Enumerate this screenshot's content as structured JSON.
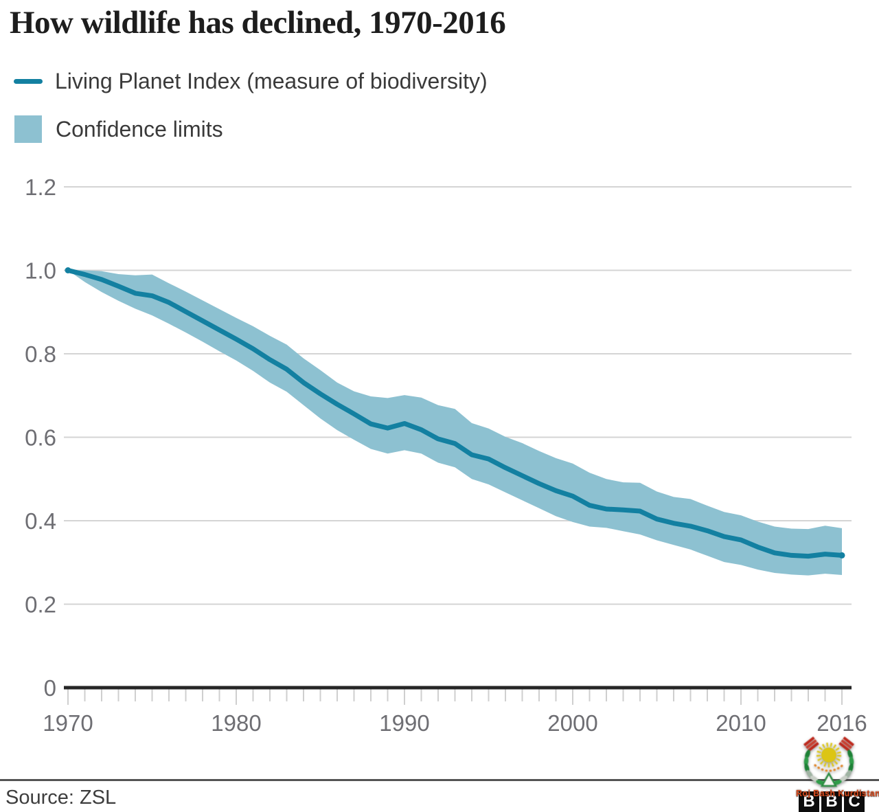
{
  "title": "How wildlife has declined, 1970-2016",
  "legend": {
    "items": [
      {
        "label": "Living Planet Index (measure of biodiversity)",
        "swatch": "line"
      },
      {
        "label": "Confidence limits",
        "swatch": "box"
      }
    ]
  },
  "source": {
    "text": "Source: ZSL"
  },
  "watermark": {
    "text": "Roj Bash Kurdistan",
    "emblem": "kurdistan-sun-laurel-wreath"
  },
  "bbc_logo": {
    "letters": [
      "B",
      "B",
      "C"
    ]
  },
  "colors": {
    "line": "#1380a1",
    "band": "#8dc1d1",
    "grid": "#d4d4d4",
    "axis": "#262626",
    "tick": "#cfcfcf",
    "tick_label": "#6e6e73",
    "title_text": "#1d1d1d",
    "legend_text": "#3a3a3a",
    "source_text": "#3d3d3d",
    "divider": "#545454",
    "watermark_text": "#d2491e"
  },
  "chart_data": {
    "type": "line",
    "title": "How wildlife has declined, 1970-2016",
    "xlabel": "",
    "ylabel": "",
    "grid": "horizontal",
    "legend_position": "top-left",
    "xlim": [
      1970,
      2016
    ],
    "ylim": [
      0,
      1.26
    ],
    "x": [
      1970,
      1971,
      1972,
      1973,
      1974,
      1975,
      1976,
      1977,
      1978,
      1979,
      1980,
      1981,
      1982,
      1983,
      1984,
      1985,
      1986,
      1987,
      1988,
      1989,
      1990,
      1991,
      1992,
      1993,
      1994,
      1995,
      1996,
      1997,
      1998,
      1999,
      2000,
      2001,
      2002,
      2003,
      2004,
      2005,
      2006,
      2007,
      2008,
      2009,
      2010,
      2011,
      2012,
      2013,
      2014,
      2015,
      2016
    ],
    "series": [
      {
        "name": "Living Planet Index",
        "role": "center-line",
        "values": [
          1.0,
          0.99,
          0.978,
          0.962,
          0.945,
          0.939,
          0.923,
          0.901,
          0.879,
          0.857,
          0.835,
          0.812,
          0.786,
          0.763,
          0.731,
          0.704,
          0.679,
          0.656,
          0.632,
          0.622,
          0.633,
          0.618,
          0.596,
          0.585,
          0.558,
          0.548,
          0.527,
          0.508,
          0.489,
          0.472,
          0.459,
          0.437,
          0.428,
          0.426,
          0.423,
          0.404,
          0.394,
          0.387,
          0.376,
          0.362,
          0.354,
          0.337,
          0.323,
          0.317,
          0.315,
          0.32,
          0.317
        ]
      },
      {
        "name": "Confidence limit (lower)",
        "role": "band-lower",
        "values": [
          1.0,
          0.972,
          0.948,
          0.927,
          0.908,
          0.892,
          0.872,
          0.851,
          0.829,
          0.806,
          0.784,
          0.759,
          0.731,
          0.709,
          0.677,
          0.645,
          0.617,
          0.594,
          0.572,
          0.561,
          0.569,
          0.561,
          0.539,
          0.528,
          0.5,
          0.487,
          0.468,
          0.449,
          0.43,
          0.411,
          0.397,
          0.386,
          0.383,
          0.375,
          0.367,
          0.353,
          0.342,
          0.331,
          0.316,
          0.301,
          0.294,
          0.283,
          0.275,
          0.271,
          0.269,
          0.273,
          0.27
        ]
      },
      {
        "name": "Confidence limit (upper)",
        "role": "band-upper",
        "values": [
          1.0,
          1.0,
          0.998,
          0.991,
          0.988,
          0.99,
          0.969,
          0.949,
          0.928,
          0.907,
          0.886,
          0.866,
          0.843,
          0.822,
          0.789,
          0.761,
          0.731,
          0.71,
          0.698,
          0.694,
          0.701,
          0.695,
          0.677,
          0.668,
          0.634,
          0.621,
          0.601,
          0.586,
          0.567,
          0.55,
          0.537,
          0.515,
          0.5,
          0.492,
          0.491,
          0.47,
          0.457,
          0.452,
          0.436,
          0.421,
          0.413,
          0.398,
          0.386,
          0.381,
          0.38,
          0.388,
          0.382
        ]
      }
    ],
    "x_ticks": [
      {
        "label": "1970",
        "value": 1970
      },
      {
        "label": "1980",
        "value": 1980
      },
      {
        "label": "1990",
        "value": 1990
      },
      {
        "label": "2000",
        "value": 2000
      },
      {
        "label": "2010",
        "value": 2010
      },
      {
        "label": "2016",
        "value": 2016
      }
    ],
    "minor_ticks": "yearly",
    "y_ticks": [
      {
        "label": "1.2",
        "value": 1.2
      },
      {
        "label": "1.0",
        "value": 1.0
      },
      {
        "label": "0.8",
        "value": 0.8
      },
      {
        "label": "0.6",
        "value": 0.6
      },
      {
        "label": "0.4",
        "value": 0.4
      },
      {
        "label": "0.2",
        "value": 0.2
      },
      {
        "label": "0",
        "value": 0
      }
    ]
  }
}
